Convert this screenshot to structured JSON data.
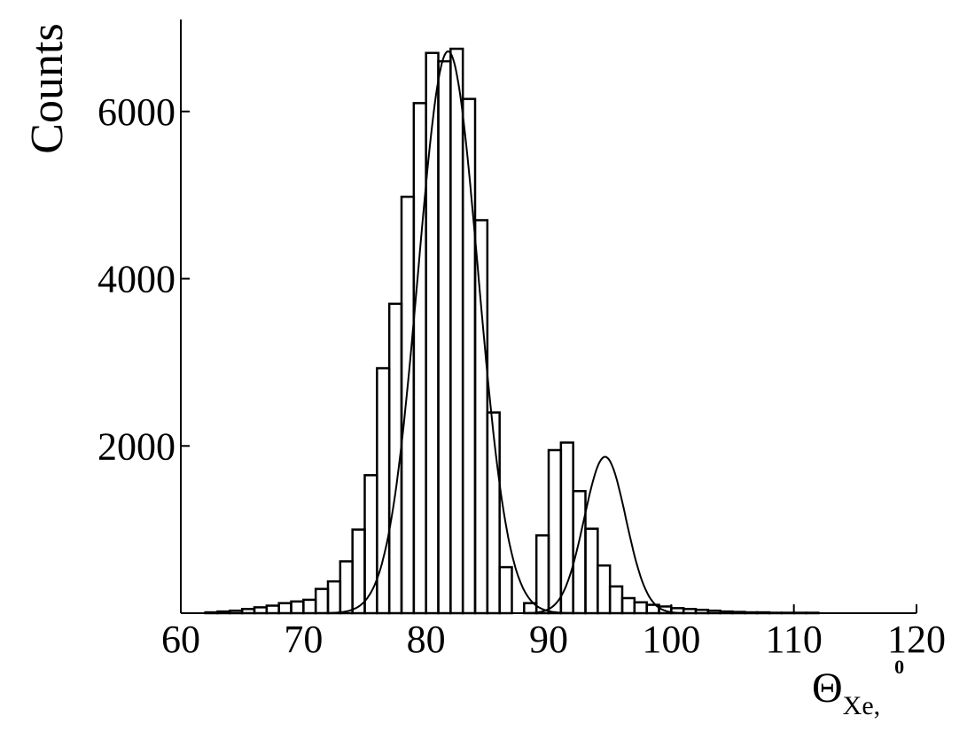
{
  "chart_data": {
    "type": "bar",
    "title": "",
    "xlabel": {
      "main": "Θ",
      "sub": "Xe,",
      "sup": "0"
    },
    "ylabel": "Counts",
    "xlim": [
      60,
      120
    ],
    "ylim": [
      0,
      7100
    ],
    "x_ticks": [
      60,
      70,
      80,
      90,
      100,
      110,
      120
    ],
    "y_ticks": [
      2000,
      4000,
      6000
    ],
    "grid": false,
    "histogram": {
      "bin_width": 1,
      "bins": [
        [
          60,
          0
        ],
        [
          61,
          0
        ],
        [
          62,
          10
        ],
        [
          63,
          20
        ],
        [
          64,
          30
        ],
        [
          65,
          50
        ],
        [
          66,
          70
        ],
        [
          67,
          90
        ],
        [
          68,
          120
        ],
        [
          69,
          140
        ],
        [
          70,
          160
        ],
        [
          71,
          290
        ],
        [
          72,
          380
        ],
        [
          73,
          620
        ],
        [
          74,
          1000
        ],
        [
          75,
          1650
        ],
        [
          76,
          2930
        ],
        [
          77,
          3700
        ],
        [
          78,
          4980
        ],
        [
          79,
          6100
        ],
        [
          80,
          6700
        ],
        [
          81,
          6600
        ],
        [
          82,
          6750
        ],
        [
          83,
          6150
        ],
        [
          84,
          4700
        ],
        [
          85,
          2400
        ],
        [
          86,
          550
        ],
        [
          87,
          0
        ],
        [
          88,
          120
        ],
        [
          89,
          930
        ],
        [
          90,
          1950
        ],
        [
          91,
          2040
        ],
        [
          92,
          1460
        ],
        [
          93,
          1010
        ],
        [
          94,
          570
        ],
        [
          95,
          320
        ],
        [
          96,
          180
        ],
        [
          97,
          130
        ],
        [
          98,
          100
        ],
        [
          99,
          80
        ],
        [
          100,
          60
        ],
        [
          101,
          50
        ],
        [
          102,
          40
        ],
        [
          103,
          30
        ],
        [
          104,
          20
        ],
        [
          105,
          15
        ],
        [
          106,
          10
        ],
        [
          107,
          10
        ],
        [
          108,
          5
        ],
        [
          109,
          5
        ],
        [
          110,
          5
        ],
        [
          111,
          5
        ],
        [
          112,
          0
        ],
        [
          113,
          0
        ],
        [
          114,
          0
        ],
        [
          115,
          0
        ],
        [
          116,
          0
        ],
        [
          117,
          0
        ],
        [
          118,
          0
        ],
        [
          119,
          0
        ]
      ]
    },
    "fits": [
      {
        "type": "gaussian",
        "amplitude": 6720,
        "mean": 81.8,
        "sigma": 2.45
      },
      {
        "type": "gaussian",
        "amplitude": 1870,
        "mean": 94.6,
        "sigma": 1.7
      }
    ]
  }
}
